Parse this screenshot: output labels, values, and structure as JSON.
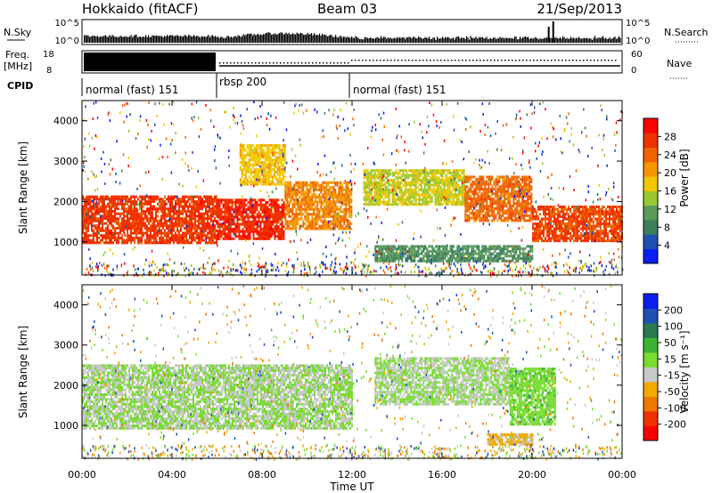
{
  "header": {
    "radar": "Hokkaido (fitACF)",
    "beam": "Beam 03",
    "date": "21/Sep/2013"
  },
  "nsky_panel": {
    "left_label": "N.Sky",
    "right_label": "N.Search",
    "y_ticks": [
      "10^5",
      "10^0"
    ]
  },
  "freq_panel": {
    "left_label_1": "Freq.",
    "left_label_2": "[MHz]",
    "left_ticks": [
      "18",
      "8"
    ],
    "right_label": "Nave",
    "right_ticks": [
      "60",
      "0"
    ]
  },
  "cpid_panel": {
    "label": "CPID",
    "modes": [
      {
        "name": "normal (fast) 151",
        "start_h": 0,
        "end_h": 6
      },
      {
        "name": "rbsp 200",
        "start_h": 6,
        "end_h": 12
      },
      {
        "name": "normal (fast) 151",
        "start_h": 12,
        "end_h": 24
      }
    ]
  },
  "power_panel": {
    "ylabel": "Slant Range [km]",
    "y_ticks": [
      "4000",
      "3000",
      "2000",
      "1000"
    ],
    "colorbar_label": "Power [dB]",
    "colorbar_ticks": [
      "28",
      "24",
      "20",
      "16",
      "12",
      "8",
      "4"
    ],
    "colors": [
      "#0a1ef0",
      "#1e50b4",
      "#3c7d5a",
      "#5a9b5a",
      "#98c832",
      "#f0c800",
      "#f59600",
      "#f06400",
      "#f03200",
      "#ff0000"
    ]
  },
  "velocity_panel": {
    "ylabel": "Slant Range [km]",
    "y_ticks": [
      "4000",
      "3000",
      "2000",
      "1000"
    ],
    "colorbar_label": "Velocity [m s⁻¹]",
    "colorbar_ticks": [
      "200",
      "100",
      "50",
      "15",
      "-15",
      "-50",
      "-100",
      "-200"
    ],
    "colors": [
      "#ff0000",
      "#f03200",
      "#f07800",
      "#f0aa00",
      "#c8c8c8",
      "#78dc32",
      "#3cb432",
      "#287850",
      "#1e50b4",
      "#0a1ef0"
    ]
  },
  "x_axis": {
    "ticks": [
      "00:00",
      "04:00",
      "08:00",
      "12:00",
      "16:00",
      "20:00",
      "00:00"
    ],
    "label": "Time UT"
  },
  "chart_data": {
    "type": "heatmap",
    "title": "Hokkaido (fitACF)",
    "xlabel": "Time UT",
    "ylabel": "Slant Range [km]",
    "xlim": [
      0,
      24
    ],
    "ylim": [
      180,
      4500
    ],
    "power_range_dB": [
      0,
      32
    ],
    "velocity_range_ms": [
      -250,
      250
    ],
    "power_bands": [
      {
        "t": [
          0,
          6
        ],
        "r_lo": 950,
        "r_hi": 2150,
        "level_dB": 27
      },
      {
        "t": [
          6,
          9
        ],
        "r_lo": 1050,
        "r_hi": 2050,
        "level_dB": 28
      },
      {
        "t": [
          9,
          12
        ],
        "r_lo": 1300,
        "r_hi": 2500,
        "level_dB": 22
      },
      {
        "t": [
          7,
          9
        ],
        "r_lo": 2400,
        "r_hi": 3400,
        "level_dB": 18
      },
      {
        "t": [
          12.5,
          17
        ],
        "r_lo": 1900,
        "r_hi": 2800,
        "level_dB": 16
      },
      {
        "t": [
          17,
          20
        ],
        "r_lo": 1500,
        "r_hi": 2600,
        "level_dB": 24
      },
      {
        "t": [
          20,
          24
        ],
        "r_lo": 1000,
        "r_hi": 1900,
        "level_dB": 26
      },
      {
        "t": [
          13,
          20
        ],
        "r_lo": 500,
        "r_hi": 900,
        "level_dB": 10
      }
    ],
    "velocity_bands": [
      {
        "t": [
          0,
          12
        ],
        "r_lo": 900,
        "r_hi": 2500,
        "level_ms": 0
      },
      {
        "t": [
          13,
          19
        ],
        "r_lo": 1500,
        "r_hi": 2700,
        "level_ms": 0
      },
      {
        "t": [
          19,
          21
        ],
        "r_lo": 1000,
        "r_hi": 2400,
        "level_ms": 30
      },
      {
        "t": [
          18,
          20
        ],
        "r_lo": 500,
        "r_hi": 800,
        "level_ms": -60
      }
    ]
  }
}
